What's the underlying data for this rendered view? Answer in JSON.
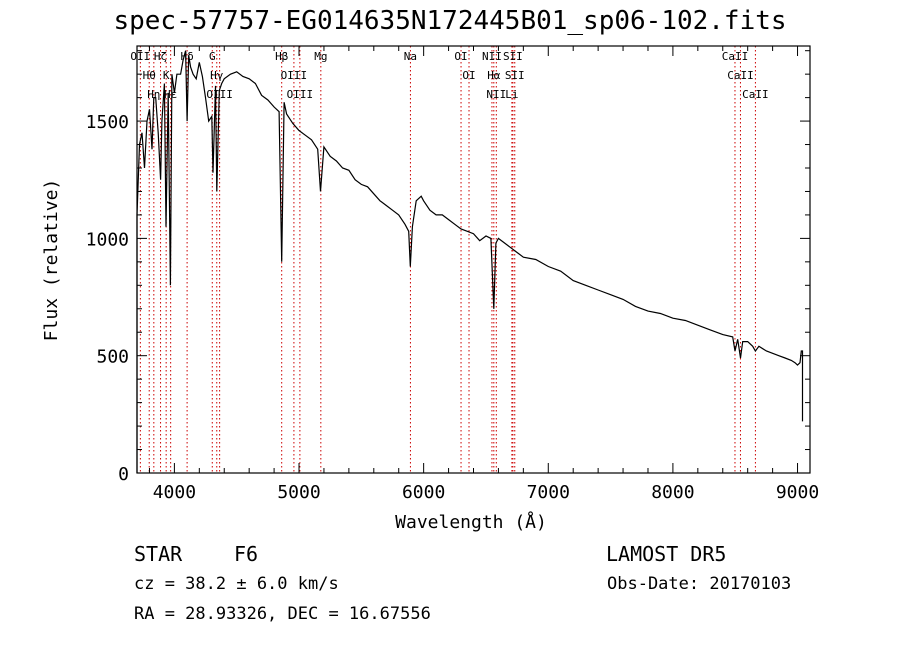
{
  "chart_data": {
    "type": "line",
    "title": "spec-57757-EG014635N172445B01_sp06-102.fits",
    "xlabel": "Wavelength (Å)",
    "ylabel": "Flux (relative)",
    "xlim": [
      3700,
      9100
    ],
    "ylim": [
      0,
      1820
    ],
    "x_ticks": [
      4000,
      5000,
      6000,
      7000,
      8000,
      9000
    ],
    "y_ticks": [
      0,
      500,
      1000,
      1500
    ],
    "grid": false,
    "series": [
      {
        "x": [
          3700,
          3720,
          3740,
          3760,
          3780,
          3800,
          3820,
          3835,
          3850,
          3870,
          3889,
          3900,
          3920,
          3933,
          3950,
          3968,
          3980,
          4000,
          4020,
          4050,
          4070,
          4090,
          4102,
          4115,
          4130,
          4150,
          4175,
          4200,
          4225,
          4250,
          4275,
          4300,
          4310,
          4330,
          4340,
          4360,
          4380,
          4400,
          4450,
          4500,
          4550,
          4600,
          4650,
          4700,
          4750,
          4800,
          4840,
          4861,
          4880,
          4900,
          4950,
          5000,
          5050,
          5100,
          5150,
          5172,
          5200,
          5250,
          5300,
          5350,
          5400,
          5450,
          5500,
          5550,
          5600,
          5650,
          5700,
          5750,
          5800,
          5850,
          5880,
          5893,
          5910,
          5940,
          5980,
          6000,
          6050,
          6100,
          6150,
          6200,
          6250,
          6300,
          6350,
          6400,
          6450,
          6500,
          6540,
          6563,
          6580,
          6600,
          6650,
          6700,
          6750,
          6800,
          6900,
          7000,
          7100,
          7200,
          7300,
          7400,
          7500,
          7600,
          7700,
          7800,
          7900,
          8000,
          8100,
          8200,
          8300,
          8400,
          8480,
          8498,
          8520,
          8542,
          8560,
          8600,
          8640,
          8662,
          8690,
          8750,
          8800,
          8850,
          8900,
          8950,
          8980,
          9000,
          9020,
          9030,
          9040
        ],
        "y": [
          1100,
          1400,
          1450,
          1300,
          1500,
          1550,
          1380,
          1600,
          1600,
          1450,
          1250,
          1500,
          1660,
          1050,
          1620,
          800,
          1700,
          1620,
          1700,
          1700,
          1760,
          1800,
          1500,
          1780,
          1730,
          1700,
          1680,
          1750,
          1690,
          1600,
          1500,
          1520,
          1280,
          1650,
          1200,
          1630,
          1660,
          1680,
          1700,
          1710,
          1690,
          1680,
          1660,
          1610,
          1590,
          1560,
          1540,
          900,
          1580,
          1530,
          1490,
          1460,
          1440,
          1420,
          1380,
          1200,
          1390,
          1350,
          1330,
          1300,
          1290,
          1250,
          1230,
          1220,
          1190,
          1160,
          1140,
          1120,
          1100,
          1060,
          1030,
          880,
          1050,
          1160,
          1180,
          1160,
          1120,
          1100,
          1100,
          1080,
          1060,
          1040,
          1030,
          1020,
          990,
          1010,
          1000,
          700,
          980,
          1000,
          980,
          960,
          940,
          920,
          910,
          880,
          860,
          820,
          800,
          780,
          760,
          740,
          710,
          690,
          680,
          660,
          650,
          630,
          610,
          590,
          580,
          520,
          570,
          490,
          560,
          560,
          540,
          520,
          540,
          520,
          510,
          500,
          490,
          480,
          470,
          460,
          470,
          520,
          520
        ]
      }
    ],
    "annotations": {
      "line_marks": [
        {
          "x": 3727,
          "label": "OII"
        },
        {
          "x": 3798,
          "label": "Hθ"
        },
        {
          "x": 3835,
          "label": "Hη"
        },
        {
          "x": 3889,
          "label": "Hζ"
        },
        {
          "x": 3934,
          "label": "K"
        },
        {
          "x": 3970,
          "label": "Hε"
        },
        {
          "x": 4102,
          "label": "Hδ"
        },
        {
          "x": 4304,
          "label": "G"
        },
        {
          "x": 4340,
          "label": "Hγ"
        },
        {
          "x": 4363,
          "label": "OIII"
        },
        {
          "x": 4861,
          "label": "Hβ"
        },
        {
          "x": 4959,
          "label": "OIII"
        },
        {
          "x": 5007,
          "label": "OIII"
        },
        {
          "x": 5175,
          "label": "Mg"
        },
        {
          "x": 5894,
          "label": "Na"
        },
        {
          "x": 6300,
          "label": "OI"
        },
        {
          "x": 6364,
          "label": "OI"
        },
        {
          "x": 6548,
          "label": "NII"
        },
        {
          "x": 6563,
          "label": "Hα"
        },
        {
          "x": 6583,
          "label": "NII"
        },
        {
          "x": 6708,
          "label": "Li"
        },
        {
          "x": 6716,
          "label": "SII"
        },
        {
          "x": 6731,
          "label": "SII"
        },
        {
          "x": 8498,
          "label": "CaII"
        },
        {
          "x": 8542,
          "label": "CaII"
        },
        {
          "x": 8662,
          "label": "CaII"
        }
      ]
    }
  },
  "info": {
    "class": "STAR",
    "subclass": "F6",
    "survey": "LAMOST  DR5",
    "cz": "cz = 38.2 ± 6.0 km/s",
    "obs_date": "Obs-Date: 20170103",
    "radec": "RA =  28.93326, DEC =  16.67556"
  },
  "colors": {
    "spectrum": "#000000",
    "line_marks": "#cc0000",
    "background": "#ffffff"
  }
}
